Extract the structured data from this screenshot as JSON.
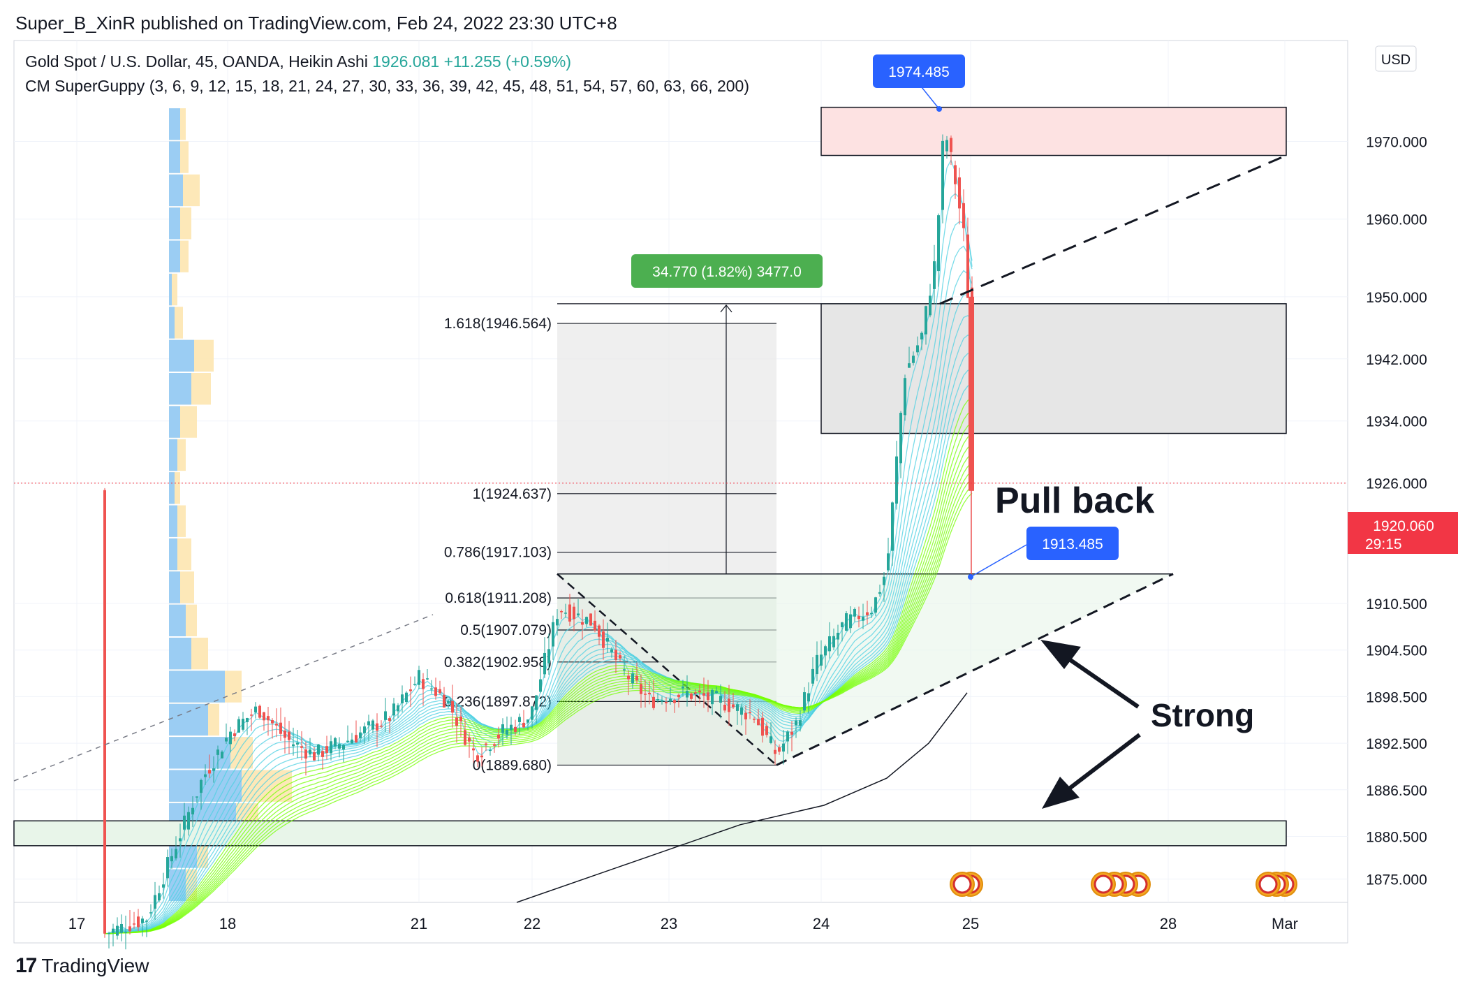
{
  "header": {
    "publisher": "Super_B_XinR published on TradingView.com, Feb 24, 2022 23:30 UTC+8",
    "symbol_line": "Gold Spot / U.S. Dollar, 45, OANDA, Heikin Ashi",
    "last_price": "1926.081",
    "change": "+11.255 (+0.59%)",
    "indicator_line": "CM SuperGuppy (3, 6, 9, 12, 15, 18, 21, 24, 27, 30, 33, 36, 39, 42, 45, 48, 51, 54, 57, 60, 63, 66, 200)",
    "currency": "USD"
  },
  "footer": {
    "brand": "TradingView"
  },
  "colors": {
    "up": "#26a69a",
    "down": "#ef5350",
    "fast_ema": "#4dd0e1",
    "slow_ema": "#76ff03",
    "callout": "#2962ff",
    "measure": "#4caf50",
    "price_tag": "#f23645"
  },
  "chart_data": {
    "type": "candlestick",
    "symbol": "XAUUSD",
    "timeframe": "45",
    "style": "Heikin Ashi",
    "x_tick_labels": [
      "17",
      "18",
      "21",
      "22",
      "23",
      "24",
      "25",
      "28",
      "Mar"
    ],
    "y_tick_labels": [
      "1970.000",
      "1960.000",
      "1950.000",
      "1942.000",
      "1934.000",
      "1926.000",
      "1910.500",
      "1904.500",
      "1898.500",
      "1892.500",
      "1886.500",
      "1880.500",
      "1875.000"
    ],
    "ylim": [
      1872,
      1983
    ],
    "current_price_label": "1926.000",
    "current_tag": {
      "price": "1920.060",
      "countdown": "29:15"
    },
    "annotations": {
      "high_label": "1974.485",
      "low_label": "1913.485",
      "measure_label": "34.770 (1.82%) 3477.0",
      "pullback_text": "Pull back",
      "strong_text": "Strong"
    },
    "fib_levels": [
      {
        "label": "1.618(1946.564)",
        "price": 1946.564
      },
      {
        "label": "1(1924.637)",
        "price": 1924.637
      },
      {
        "label": "0.786(1917.103)",
        "price": 1917.103
      },
      {
        "label": "0.618(1911.208)",
        "price": 1911.208
      },
      {
        "label": "0.5(1907.079)",
        "price": 1907.079
      },
      {
        "label": "0.382(1902.958)",
        "price": 1902.958
      },
      {
        "label": "0.236(1897.872)",
        "price": 1897.872
      },
      {
        "label": "0(1889.680)",
        "price": 1889.68
      }
    ],
    "zones": [
      {
        "name": "resistance-zone",
        "from": 1968.2,
        "to": 1974.4
      },
      {
        "name": "supply-zone",
        "from": 1932.4,
        "to": 1949.1
      },
      {
        "name": "support-zone",
        "from": 1879.3,
        "to": 1882.5
      }
    ]
  }
}
